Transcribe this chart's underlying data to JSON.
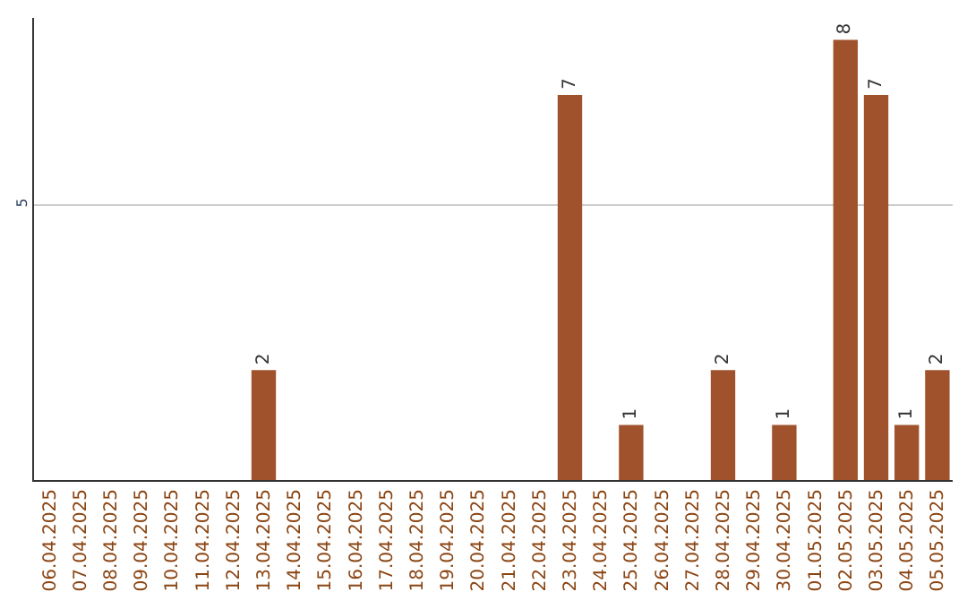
{
  "chart_data": {
    "type": "bar",
    "categories": [
      "06.04.2025",
      "07.04.2025",
      "08.04.2025",
      "09.04.2025",
      "10.04.2025",
      "11.04.2025",
      "12.04.2025",
      "13.04.2025",
      "14.04.2025",
      "15.04.2025",
      "16.04.2025",
      "17.04.2025",
      "18.04.2025",
      "19.04.2025",
      "20.04.2025",
      "21.04.2025",
      "22.04.2025",
      "23.04.2025",
      "24.04.2025",
      "25.04.2025",
      "26.04.2025",
      "27.04.2025",
      "28.04.2025",
      "29.04.2025",
      "30.04.2025",
      "01.05.2025",
      "02.05.2025",
      "03.05.2025",
      "04.05.2025",
      "05.05.2025"
    ],
    "values": [
      0,
      0,
      0,
      0,
      0,
      0,
      0,
      2,
      0,
      0,
      0,
      0,
      0,
      0,
      0,
      0,
      0,
      7,
      0,
      1,
      0,
      0,
      2,
      0,
      1,
      0,
      8,
      7,
      1,
      2
    ],
    "value_labels": [
      null,
      null,
      null,
      null,
      null,
      null,
      null,
      "2",
      null,
      null,
      null,
      null,
      null,
      null,
      null,
      null,
      null,
      "7",
      null,
      "1",
      null,
      null,
      "2",
      null,
      "1",
      null,
      "8",
      "7",
      "1",
      "2"
    ],
    "color": "#a0522d",
    "ylim": [
      0,
      8.4
    ],
    "yticks": [
      5
    ],
    "grid": "y",
    "legend": false
  }
}
